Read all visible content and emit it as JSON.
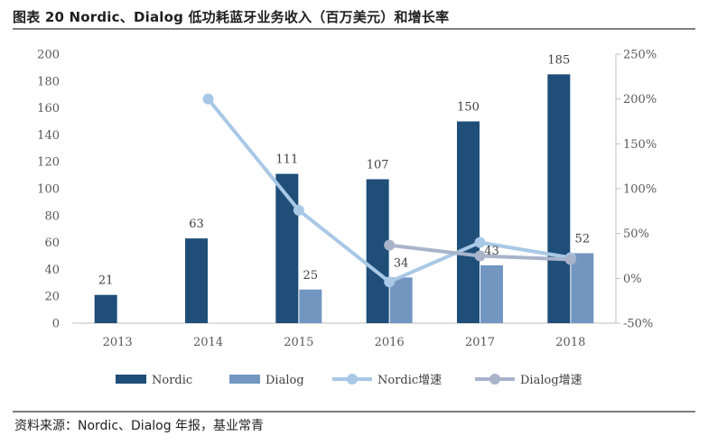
{
  "title": "图表 20 Nordic、Dialog 低功耗蓝牙业务收入（百万美元）和增长率",
  "source": "资料来源：Nordic、Dialog 年报，基业常青",
  "chart_data": {
    "type": "bar",
    "categories": [
      "2013",
      "2014",
      "2015",
      "2016",
      "2017",
      "2018"
    ],
    "y_left": {
      "range": [
        0,
        200
      ],
      "ticks": [
        "0",
        "20",
        "40",
        "60",
        "80",
        "100",
        "120",
        "140",
        "160",
        "180",
        "200"
      ]
    },
    "y_right": {
      "range": [
        -50,
        250
      ],
      "unit": "%",
      "ticks": [
        "-50%",
        "0%",
        "50%",
        "100%",
        "150%",
        "200%",
        "250%"
      ]
    },
    "grid": false,
    "legend_position": "bottom",
    "bar_series": [
      {
        "name": "Nordic",
        "color": "#1f4e79",
        "values": [
          21,
          63,
          111,
          107,
          150,
          185
        ],
        "labels": [
          "21",
          "63",
          "111",
          "107",
          "150",
          "185"
        ]
      },
      {
        "name": "Dialog",
        "color": "#7396c1",
        "values": [
          null,
          null,
          25,
          34,
          43,
          52
        ],
        "labels": [
          "",
          "",
          "25",
          "34",
          "43",
          "52"
        ]
      }
    ],
    "line_series": [
      {
        "name": "Nordic增速",
        "color": "#a8c8e6",
        "axis": "right",
        "values": [
          null,
          200,
          76,
          -4,
          40,
          23
        ]
      },
      {
        "name": "Dialog增速",
        "color": "#a9b4cb",
        "axis": "right",
        "values": [
          null,
          null,
          null,
          37,
          25,
          21
        ]
      }
    ]
  }
}
